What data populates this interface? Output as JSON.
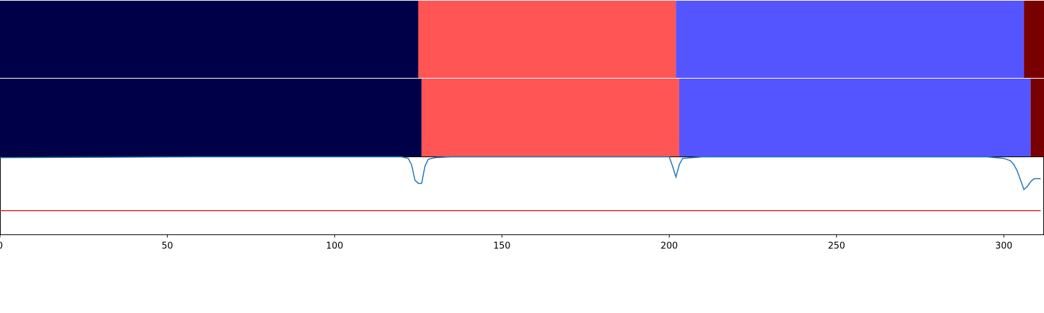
{
  "chart_data": [
    {
      "type": "bar",
      "orientation": "horizontal-segments",
      "panel": "top",
      "segments": [
        {
          "start": 0,
          "end": 125,
          "color": "#000048"
        },
        {
          "start": 125,
          "end": 202,
          "color": "#ff5555"
        },
        {
          "start": 202,
          "end": 306,
          "color": "#5555ff"
        },
        {
          "start": 306,
          "end": 312,
          "color": "#780000"
        }
      ]
    },
    {
      "type": "bar",
      "orientation": "horizontal-segments",
      "panel": "middle",
      "segments": [
        {
          "start": 0,
          "end": 126,
          "color": "#000048"
        },
        {
          "start": 126,
          "end": 203,
          "color": "#ff5555"
        },
        {
          "start": 203,
          "end": 308,
          "color": "#5555ff"
        },
        {
          "start": 308,
          "end": 312,
          "color": "#780000"
        }
      ]
    },
    {
      "type": "line",
      "panel": "bottom",
      "xlim": [
        0,
        312
      ],
      "ylim": [
        0,
        1
      ],
      "grid": false,
      "xticks": [
        "0",
        "50",
        "100",
        "150",
        "200",
        "250",
        "300"
      ],
      "xtick_values": [
        0,
        50,
        100,
        150,
        200,
        250,
        300
      ],
      "series": [
        {
          "color": "#1f77b4",
          "x": [
            0,
            30,
            60,
            120,
            122,
            123,
            124,
            125,
            126,
            127,
            128,
            130,
            135,
            200,
            201,
            202,
            203,
            204,
            210,
            295,
            300,
            302,
            303,
            304,
            305,
            306,
            307,
            308,
            309,
            310,
            311
          ],
          "y": [
            0.99,
            0.995,
            1.0,
            1.0,
            0.98,
            0.9,
            0.7,
            0.66,
            0.66,
            0.88,
            0.97,
            0.99,
            1.0,
            1.0,
            0.88,
            0.74,
            0.9,
            0.98,
            1.0,
            1.0,
            0.98,
            0.95,
            0.9,
            0.82,
            0.7,
            0.58,
            0.62,
            0.68,
            0.72,
            0.72,
            0.72
          ]
        },
        {
          "color": "#d62728",
          "x": [
            0,
            311
          ],
          "y": [
            0.31,
            0.31
          ]
        }
      ]
    }
  ]
}
